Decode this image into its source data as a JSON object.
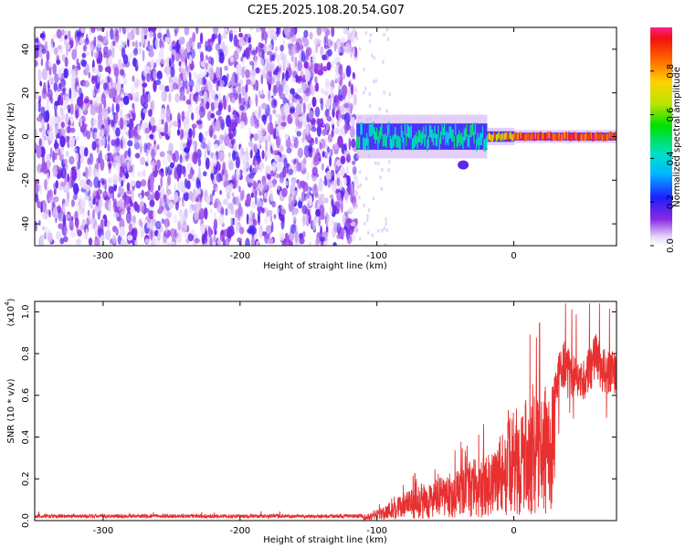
{
  "title": "C2E5.2025.108.20.54.G07",
  "chart_data": [
    {
      "type": "heatmap",
      "xlabel": "Height of straight line (km)",
      "ylabel": "Frequency (Hz)",
      "xlim": [
        -350,
        75
      ],
      "ylim": [
        -50,
        50
      ],
      "xticks": [
        -300,
        -200,
        -100,
        0
      ],
      "yticks": [
        -40,
        -20,
        0,
        20,
        40
      ],
      "noise_region_x": [
        -350,
        -115
      ],
      "signal_band_x": [
        -115,
        75
      ],
      "signal_band_center_hz": 0,
      "secondary_blob": {
        "x": -37,
        "y_hz": -13
      }
    },
    {
      "type": "heatmap-colorbar",
      "label": "Normalized spectral amplitude",
      "range": [
        0.0,
        1.0
      ],
      "ticks": [
        0.0,
        0.2,
        0.4,
        0.6,
        0.8
      ]
    },
    {
      "type": "line",
      "xlabel": "Height of straight line (km)",
      "ylabel": "SNR (10 * v/v)",
      "scale_label": "(x10",
      "scale_exponent": "4",
      "scale_close": ")",
      "xlim": [
        -350,
        75
      ],
      "ylim": [
        0.0,
        1.05
      ],
      "xticks": [
        -300,
        -200,
        -100,
        0
      ],
      "yticks": [
        0.0,
        0.2,
        0.4,
        0.6,
        0.8,
        1.0
      ],
      "color": "#e83030",
      "envelope_x": [
        -350,
        -300,
        -250,
        -200,
        -150,
        -110,
        -100,
        -80,
        -60,
        -45,
        -30,
        -20,
        -12,
        -5,
        0,
        10,
        20,
        30,
        37,
        42,
        50,
        55,
        60,
        65,
        70,
        75
      ],
      "envelope_y": [
        0.015,
        0.015,
        0.015,
        0.015,
        0.015,
        0.015,
        0.05,
        0.13,
        0.18,
        0.22,
        0.28,
        0.3,
        0.38,
        0.45,
        0.5,
        0.56,
        0.6,
        0.66,
        0.76,
        0.7,
        0.66,
        0.72,
        0.78,
        0.72,
        0.7,
        0.72
      ]
    }
  ]
}
